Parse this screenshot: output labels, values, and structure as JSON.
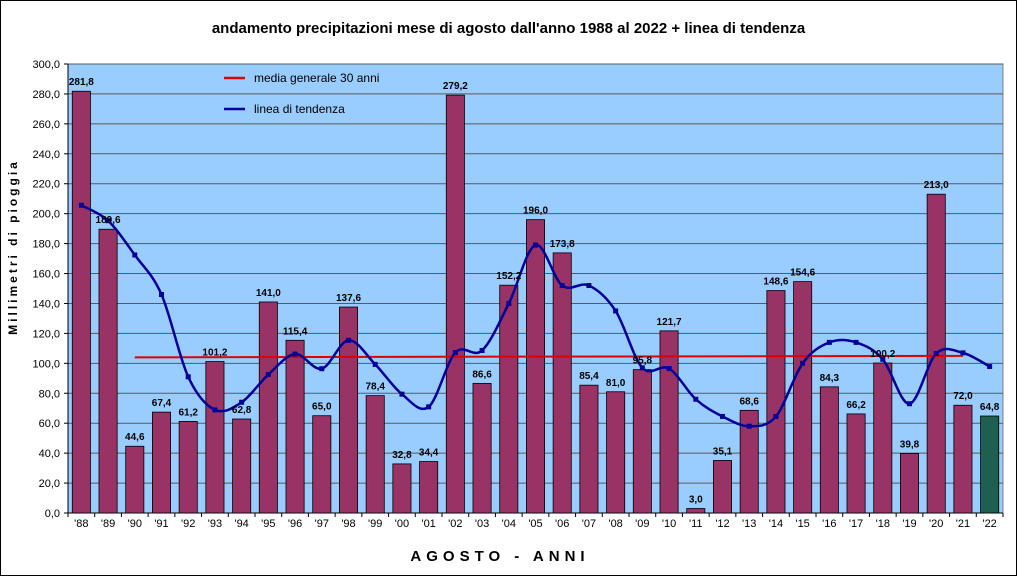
{
  "chart_data": {
    "type": "bar",
    "title": "andamento precipitazioni mese di agosto dall'anno 1988 al 2022 + linea di tendenza",
    "xlabel": "AGOSTO - ANNI",
    "ylabel": "Millimetri di pioggia",
    "ylim": [
      0,
      300
    ],
    "ytick_step": 20,
    "ytick_labels": [
      "0,0",
      "20,0",
      "40,0",
      "60,0",
      "80,0",
      "100,0",
      "120,0",
      "140,0",
      "160,0",
      "180,0",
      "200,0",
      "220,0",
      "240,0",
      "260,0",
      "280,0",
      "300,0"
    ],
    "grid": true,
    "categories": [
      "'88",
      "'89",
      "'90",
      "'91",
      "'92",
      "'93",
      "'94",
      "'95",
      "'96",
      "'97",
      "'98",
      "'99",
      "'00",
      "'01",
      "'02",
      "'03",
      "'04",
      "'05",
      "'06",
      "'07",
      "'08",
      "'09",
      "'10",
      "'11",
      "'12",
      "'13",
      "'14",
      "'15",
      "'16",
      "'17",
      "'18",
      "'19",
      "'20",
      "'21",
      "'22"
    ],
    "values": [
      281.8,
      189.6,
      44.6,
      67.4,
      61.2,
      101.2,
      62.8,
      141.0,
      115.4,
      65.0,
      137.6,
      78.4,
      32.8,
      34.4,
      279.2,
      86.6,
      152.2,
      196.0,
      173.8,
      85.4,
      81.0,
      95.8,
      121.7,
      3.0,
      35.1,
      68.6,
      148.6,
      154.6,
      84.3,
      66.2,
      100.2,
      39.8,
      213.0,
      72.0,
      64.8
    ],
    "value_labels": [
      "281,8",
      "189,6",
      "44,6",
      "67,4",
      "61,2",
      "101,2",
      "62,8",
      "141,0",
      "115,4",
      "65,0",
      "137,6",
      "78,4",
      "32,8",
      "34,4",
      "279,2",
      "86,6",
      "152,2",
      "196,0",
      "173,8",
      "85,4",
      "81,0",
      "95,8",
      "121,7",
      "3,0",
      "35,1",
      "68,6",
      "148,6",
      "154,6",
      "84,3",
      "66,2",
      "100,2",
      "39,8",
      "213,0",
      "72,0",
      "64,8"
    ],
    "bar_color": "#993366",
    "last_bar_color": "#1f5f4f",
    "plot_background": "#99ccff",
    "series": [
      {
        "name": "media generale 30 anni",
        "type": "line",
        "color": "#dd0000",
        "x_start": "'90",
        "x_end": "'21",
        "y_start": 104,
        "y_end": 105
      },
      {
        "name": "linea di tendenza",
        "type": "line",
        "color": "#000099",
        "values": [
          205.6,
          195.3,
          172.4,
          146.0,
          91.0,
          68.9,
          74.0,
          92.5,
          106.2,
          96.4,
          115.4,
          99.3,
          79.4,
          70.9,
          107.2,
          108.6,
          140.0,
          179.0,
          152.0,
          152.0,
          135.0,
          97.0,
          96.5,
          76.0,
          64.5,
          58.0,
          64.5,
          100.0,
          114.0,
          114.0,
          102.7,
          73.0,
          106.6,
          107.0,
          97.9
        ]
      }
    ],
    "legend": {
      "position": "top-left"
    }
  }
}
